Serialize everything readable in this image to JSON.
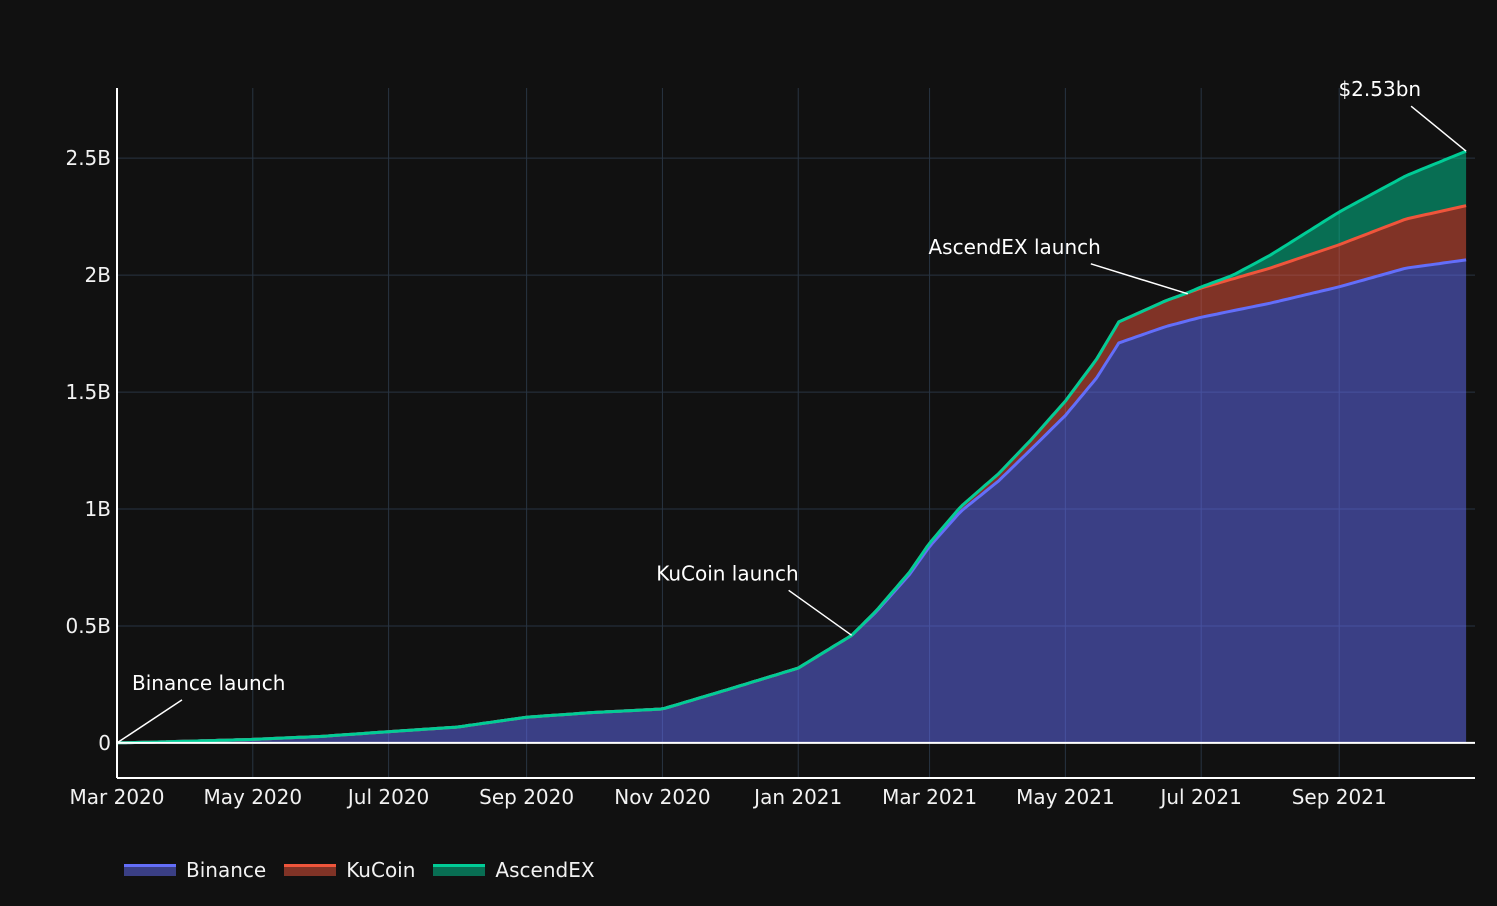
{
  "chart_data": {
    "type": "area",
    "stacked": true,
    "x_ticks": [
      "Mar 2020",
      "May 2020",
      "Jul 2020",
      "Sep 2020",
      "Nov 2020",
      "Jan 2021",
      "Mar 2021",
      "May 2021",
      "Jul 2021",
      "Sep 2021"
    ],
    "y_ticks": [
      "0",
      "0.5B",
      "1B",
      "1.5B",
      "2B",
      "2.5B"
    ],
    "xlim": [
      "2020-03-01",
      "2021-11-01"
    ],
    "ylim": [
      -150000000,
      2800000000
    ],
    "grid": true,
    "legend_position": "bottom-left",
    "series": [
      {
        "name": "Binance",
        "color": "#636efa",
        "points": [
          [
            "2020-03-01",
            0
          ],
          [
            "2020-04-01",
            7000000
          ],
          [
            "2020-05-01",
            15000000
          ],
          [
            "2020-06-01",
            28000000
          ],
          [
            "2020-07-01",
            48000000
          ],
          [
            "2020-08-01",
            68000000
          ],
          [
            "2020-09-01",
            110000000
          ],
          [
            "2020-10-01",
            130000000
          ],
          [
            "2020-11-01",
            145000000
          ],
          [
            "2020-12-01",
            230000000
          ],
          [
            "2021-01-01",
            320000000
          ],
          [
            "2021-01-25",
            460000000
          ],
          [
            "2021-02-05",
            560000000
          ],
          [
            "2021-02-20",
            720000000
          ],
          [
            "2021-03-01",
            840000000
          ],
          [
            "2021-03-15",
            990000000
          ],
          [
            "2021-04-01",
            1120000000
          ],
          [
            "2021-04-15",
            1250000000
          ],
          [
            "2021-05-01",
            1400000000
          ],
          [
            "2021-05-15",
            1560000000
          ],
          [
            "2021-05-25",
            1710000000
          ],
          [
            "2021-06-15",
            1780000000
          ],
          [
            "2021-07-01",
            1820000000
          ],
          [
            "2021-08-01",
            1880000000
          ],
          [
            "2021-09-01",
            1950000000
          ],
          [
            "2021-10-01",
            2030000000
          ],
          [
            "2021-10-28",
            2065000000
          ]
        ]
      },
      {
        "name": "KuCoin",
        "color": "#ef553b",
        "points": [
          [
            "2020-03-01",
            0
          ],
          [
            "2021-01-25",
            0
          ],
          [
            "2021-02-20",
            10000000
          ],
          [
            "2021-03-15",
            20000000
          ],
          [
            "2021-04-15",
            40000000
          ],
          [
            "2021-05-15",
            80000000
          ],
          [
            "2021-05-25",
            90000000
          ],
          [
            "2021-06-15",
            110000000
          ],
          [
            "2021-07-01",
            125000000
          ],
          [
            "2021-08-01",
            150000000
          ],
          [
            "2021-09-01",
            180000000
          ],
          [
            "2021-10-01",
            210000000
          ],
          [
            "2021-10-28",
            232000000
          ]
        ]
      },
      {
        "name": "AscendEX",
        "color": "#00cc96",
        "points": [
          [
            "2020-03-01",
            0
          ],
          [
            "2021-06-25",
            0
          ],
          [
            "2021-07-15",
            15000000
          ],
          [
            "2021-08-01",
            55000000
          ],
          [
            "2021-09-01",
            140000000
          ],
          [
            "2021-10-01",
            185000000
          ],
          [
            "2021-10-28",
            233000000
          ]
        ]
      }
    ],
    "annotations": [
      {
        "text": "Binance launch",
        "x": "2020-03-01",
        "y": 0
      },
      {
        "text": "KuCoin launch",
        "x": "2021-01-25",
        "y": 460000000
      },
      {
        "text": "AscendEX launch",
        "x": "2021-06-25",
        "y": 1920000000
      },
      {
        "text": "$2.53bn",
        "x": "2021-10-28",
        "y": 2530000000
      }
    ]
  }
}
